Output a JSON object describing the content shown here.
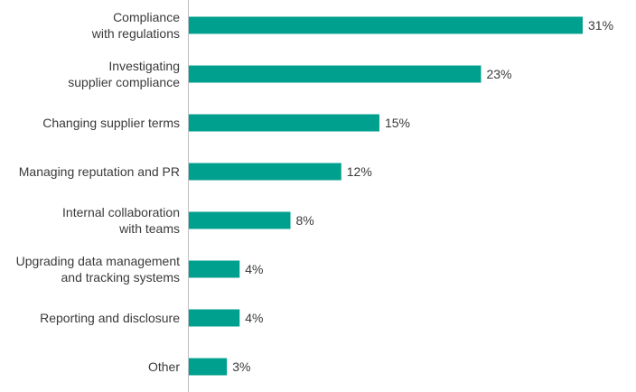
{
  "chart_data": {
    "type": "bar",
    "orientation": "horizontal",
    "categories": [
      [
        "Compliance",
        "with regulations"
      ],
      [
        "Investigating",
        "supplier compliance"
      ],
      [
        "Changing supplier terms"
      ],
      [
        "Managing reputation and PR"
      ],
      [
        "Internal collaboration",
        "with teams"
      ],
      [
        "Upgrading data management",
        "and tracking systems"
      ],
      [
        "Reporting and disclosure"
      ],
      [
        "Other"
      ]
    ],
    "values": [
      31,
      23,
      15,
      12,
      8,
      4,
      4,
      3
    ],
    "value_labels": [
      "31%",
      "23%",
      "15%",
      "12%",
      "8%",
      "4%",
      "4%",
      "3%"
    ],
    "unit": "%",
    "xlim": [
      0,
      31
    ],
    "bar_color": "#00a08e",
    "axis_color": "#bfbfbf",
    "text_color": "#3a3a3a",
    "grid": false,
    "legend": "none"
  }
}
